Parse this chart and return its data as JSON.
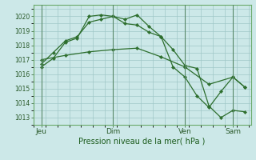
{
  "title": "Pression niveau de la mer( hPa )",
  "bg_color": "#cce8e8",
  "grid_color": "#a0c8c8",
  "line_color": "#2d6e2d",
  "vline_color": "#5a8a6a",
  "ylim": [
    1012.5,
    1020.8
  ],
  "yticks": [
    1013,
    1014,
    1015,
    1016,
    1017,
    1018,
    1019,
    1020
  ],
  "xtick_labels": [
    "Jeu",
    "Dim",
    "Ven",
    "Sam"
  ],
  "xtick_positions": [
    0,
    36,
    72,
    96
  ],
  "xlim": [
    -4,
    105
  ],
  "line1_x": [
    0,
    6,
    12,
    18,
    24,
    30,
    36,
    42,
    48,
    54,
    60,
    66,
    72,
    78,
    84,
    90,
    96,
    102
  ],
  "line1_y": [
    1016.5,
    1017.1,
    1018.2,
    1018.5,
    1020.0,
    1020.1,
    1020.0,
    1019.8,
    1020.1,
    1019.3,
    1018.6,
    1017.7,
    1016.6,
    1016.4,
    1013.8,
    1013.0,
    1013.5,
    1013.4
  ],
  "line2_x": [
    0,
    6,
    12,
    18,
    24,
    30,
    36,
    42,
    48,
    54,
    60,
    66,
    72,
    78,
    84,
    90,
    96,
    102
  ],
  "line2_y": [
    1016.7,
    1017.5,
    1018.3,
    1018.6,
    1019.6,
    1019.8,
    1020.0,
    1019.5,
    1019.4,
    1018.9,
    1018.6,
    1016.5,
    1015.8,
    1014.5,
    1013.7,
    1014.8,
    1015.8,
    1015.1
  ],
  "line3_x": [
    0,
    12,
    24,
    36,
    48,
    60,
    72,
    84,
    96,
    102
  ],
  "line3_y": [
    1017.0,
    1017.3,
    1017.55,
    1017.7,
    1017.8,
    1017.2,
    1016.5,
    1015.3,
    1015.8,
    1015.1
  ]
}
